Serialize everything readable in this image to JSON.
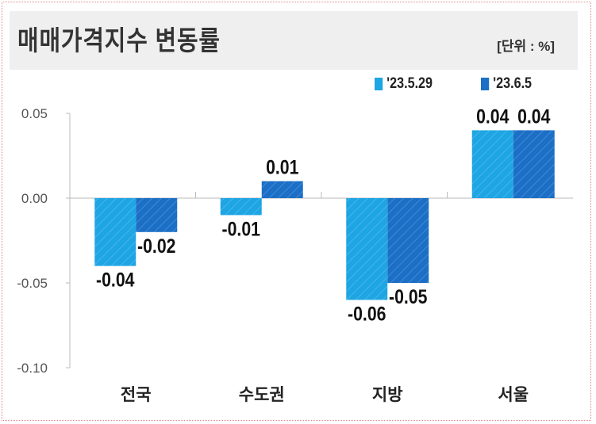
{
  "header": {
    "title": "매매가격지수 변동률",
    "unit": "[단위 : %]"
  },
  "chart_data": {
    "type": "bar",
    "categories": [
      "전국",
      "수도권",
      "지방",
      "서울"
    ],
    "series": [
      {
        "name": "'23.5.29",
        "values": [
          -0.04,
          -0.01,
          -0.06,
          0.04
        ],
        "labels": [
          "-0.04",
          "-0.01",
          "-0.06",
          "0.04"
        ],
        "color": "#1ea5e3"
      },
      {
        "name": "'23.6.5",
        "values": [
          -0.02,
          0.01,
          -0.05,
          0.04
        ],
        "labels": [
          "-0.02",
          "0.01",
          "-0.05",
          "0.04"
        ],
        "color": "#1b6fc6"
      }
    ],
    "yticks": [
      "0.05",
      "0.00",
      "-0.05",
      "-0.10"
    ],
    "ylim": [
      -0.1,
      0.05
    ],
    "legend": "top-right",
    "grid": false
  }
}
